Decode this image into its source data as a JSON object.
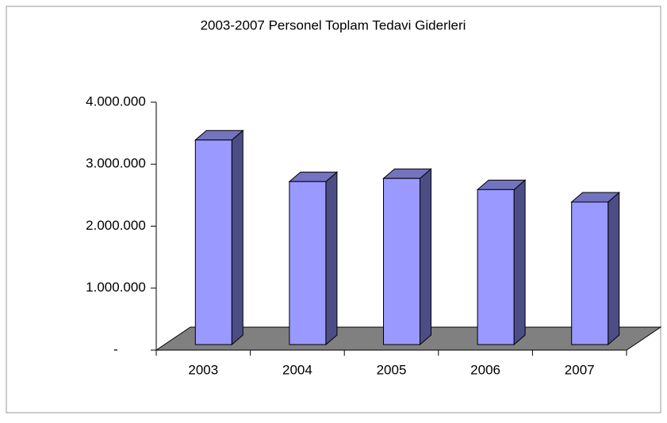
{
  "chart_data": {
    "type": "bar3d",
    "title": "2003-2007  Personel Toplam Tedavi Giderleri",
    "categories": [
      "2003",
      "2004",
      "2005",
      "2006",
      "2007"
    ],
    "values": [
      3300000,
      2630000,
      2680000,
      2500000,
      2300000
    ],
    "color": "#9999ff",
    "ylim": [
      0,
      4000000
    ],
    "yticks": [
      {
        "value": 0,
        "label": "-"
      },
      {
        "value": 1000000,
        "label": "1.000.000"
      },
      {
        "value": 2000000,
        "label": "2.000.000"
      },
      {
        "value": 3000000,
        "label": "3.000.000"
      },
      {
        "value": 4000000,
        "label": "4.000.000"
      }
    ]
  }
}
